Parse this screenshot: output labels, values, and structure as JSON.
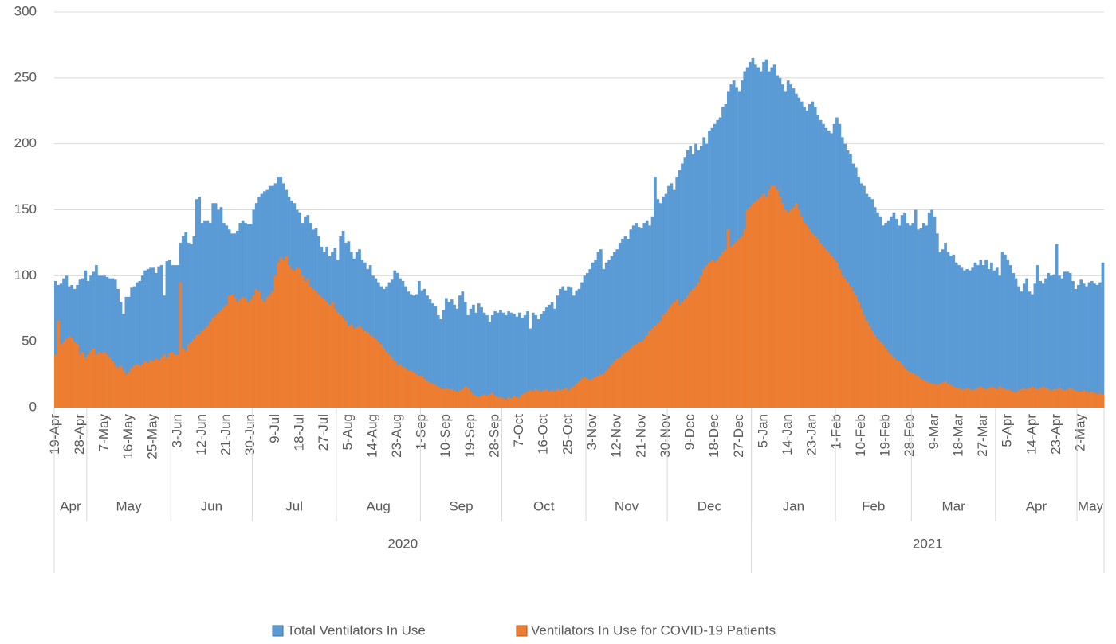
{
  "chart_data": {
    "type": "bar",
    "overlap": true,
    "ylim": [
      0,
      300
    ],
    "yticks": [
      0,
      50,
      100,
      150,
      200,
      250,
      300
    ],
    "grid": true,
    "legend": "bottom",
    "categories": [
      "19-Apr",
      null,
      null,
      null,
      null,
      null,
      null,
      null,
      null,
      "28-Apr",
      null,
      null,
      null,
      null,
      null,
      null,
      null,
      null,
      "7-May",
      null,
      null,
      null,
      null,
      null,
      null,
      null,
      null,
      "16-May",
      null,
      null,
      null,
      null,
      null,
      null,
      null,
      null,
      "25-May",
      null,
      null,
      null,
      null,
      null,
      null,
      null,
      null,
      "3-Jun",
      null,
      null,
      null,
      null,
      null,
      null,
      null,
      null,
      "12-Jun",
      null,
      null,
      null,
      null,
      null,
      null,
      null,
      null,
      "21-Jun",
      null,
      null,
      null,
      null,
      null,
      null,
      null,
      null,
      "30-Jun",
      null,
      null,
      null,
      null,
      null,
      null,
      null,
      null,
      "9-Jul",
      null,
      null,
      null,
      null,
      null,
      null,
      null,
      null,
      "18-Jul",
      null,
      null,
      null,
      null,
      null,
      null,
      null,
      null,
      "27-Jul",
      null,
      null,
      null,
      null,
      null,
      null,
      null,
      null,
      "5-Aug",
      null,
      null,
      null,
      null,
      null,
      null,
      null,
      null,
      "14-Aug",
      null,
      null,
      null,
      null,
      null,
      null,
      null,
      null,
      "23-Aug",
      null,
      null,
      null,
      null,
      null,
      null,
      null,
      null,
      "1-Sep",
      null,
      null,
      null,
      null,
      null,
      null,
      null,
      null,
      "10-Sep",
      null,
      null,
      null,
      null,
      null,
      null,
      null,
      null,
      "19-Sep",
      null,
      null,
      null,
      null,
      null,
      null,
      null,
      null,
      "28-Sep",
      null,
      null,
      null,
      null,
      null,
      null,
      null,
      null,
      "7-Oct",
      null,
      null,
      null,
      null,
      null,
      null,
      null,
      null,
      "16-Oct",
      null,
      null,
      null,
      null,
      null,
      null,
      null,
      null,
      "25-Oct",
      null,
      null,
      null,
      null,
      null,
      null,
      null,
      null,
      "3-Nov",
      null,
      null,
      null,
      null,
      null,
      null,
      null,
      null,
      "12-Nov",
      null,
      null,
      null,
      null,
      null,
      null,
      null,
      null,
      "21-Nov",
      null,
      null,
      null,
      null,
      null,
      null,
      null,
      null,
      "30-Nov",
      null,
      null,
      null,
      null,
      null,
      null,
      null,
      null,
      "9-Dec",
      null,
      null,
      null,
      null,
      null,
      null,
      null,
      null,
      "18-Dec",
      null,
      null,
      null,
      null,
      null,
      null,
      null,
      null,
      "27-Dec",
      null,
      null,
      null,
      null,
      null,
      null,
      null,
      null,
      "5-Jan",
      null,
      null,
      null,
      null,
      null,
      null,
      null,
      null,
      "14-Jan",
      null,
      null,
      null,
      null,
      null,
      null,
      null,
      null,
      "23-Jan",
      null,
      null,
      null,
      null,
      null,
      null,
      null,
      null,
      "1-Feb",
      null,
      null,
      null,
      null,
      null,
      null,
      null,
      null,
      "10-Feb",
      null,
      null,
      null,
      null,
      null,
      null,
      null,
      null,
      "19-Feb",
      null,
      null,
      null,
      null,
      null,
      null,
      null,
      null,
      "28-Feb",
      null,
      null,
      null,
      null,
      null,
      null,
      null,
      null,
      "9-Mar",
      null,
      null,
      null,
      null,
      null,
      null,
      null,
      null,
      "18-Mar",
      null,
      null,
      null,
      null,
      null,
      null,
      null,
      null,
      "27-Mar",
      null,
      null,
      null,
      null,
      null,
      null,
      null,
      null,
      "5-Apr",
      null,
      null,
      null,
      null,
      null,
      null,
      null,
      null,
      "14-Apr",
      null,
      null,
      null,
      null,
      null,
      null,
      null,
      null,
      "23-Apr",
      null,
      null,
      null,
      null,
      null,
      null,
      null,
      null,
      "2-May",
      null,
      null,
      null,
      null,
      null,
      null,
      null,
      null
    ],
    "month_groups": [
      {
        "label": "Apr",
        "days": 12
      },
      {
        "label": "May",
        "days": 31
      },
      {
        "label": "Jun",
        "days": 30
      },
      {
        "label": "Jul",
        "days": 31
      },
      {
        "label": "Aug",
        "days": 31
      },
      {
        "label": "Sep",
        "days": 30
      },
      {
        "label": "Oct",
        "days": 31
      },
      {
        "label": "Nov",
        "days": 30
      },
      {
        "label": "Dec",
        "days": 31
      },
      {
        "label": "Jan",
        "days": 31
      },
      {
        "label": "Feb",
        "days": 28
      },
      {
        "label": "Mar",
        "days": 31
      },
      {
        "label": "Apr",
        "days": 30
      },
      {
        "label": "May",
        "days": 10
      }
    ],
    "year_groups": [
      {
        "label": "2020",
        "months": 9
      },
      {
        "label": "2021",
        "months": 5
      }
    ],
    "series": [
      {
        "name": "Total Ventilators In Use",
        "color": "#5b9bd5",
        "values": [
          96,
          93,
          94,
          98,
          100,
          92,
          93,
          90,
          93,
          97,
          98,
          104,
          96,
          100,
          103,
          108,
          100,
          100,
          100,
          99,
          98,
          98,
          97,
          90,
          80,
          71,
          84,
          84,
          91,
          92,
          95,
          96,
          100,
          104,
          105,
          106,
          106,
          102,
          107,
          108,
          85,
          111,
          112,
          108,
          108,
          108,
          125,
          130,
          133,
          125,
          124,
          130,
          158,
          160,
          140,
          142,
          142,
          140,
          155,
          155,
          150,
          152,
          140,
          138,
          135,
          132,
          132,
          134,
          140,
          142,
          140,
          139,
          139,
          150,
          155,
          160,
          162,
          164,
          165,
          168,
          168,
          170,
          175,
          175,
          170,
          165,
          160,
          157,
          155,
          150,
          148,
          140,
          145,
          146,
          140,
          135,
          136,
          130,
          122,
          118,
          122,
          115,
          118,
          121,
          112,
          130,
          134,
          125,
          126,
          118,
          113,
          118,
          120,
          112,
          110,
          105,
          108,
          100,
          98,
          95,
          92,
          90,
          92,
          95,
          97,
          104,
          102,
          98,
          96,
          92,
          88,
          86,
          85,
          86,
          96,
          89,
          90,
          85,
          82,
          79,
          77,
          70,
          67,
          74,
          83,
          80,
          82,
          78,
          75,
          85,
          88,
          80,
          70,
          75,
          78,
          72,
          79,
          76,
          72,
          70,
          65,
          70,
          73,
          72,
          74,
          72,
          70,
          73,
          72,
          71,
          69,
          72,
          68,
          70,
          73,
          60,
          72,
          70,
          67,
          71,
          73,
          76,
          78,
          80,
          75,
          85,
          90,
          92,
          89,
          92,
          91,
          85,
          89,
          90,
          95,
          100,
          102,
          105,
          110,
          112,
          118,
          120,
          105,
          110,
          112,
          115,
          118,
          120,
          125,
          128,
          130,
          128,
          135,
          138,
          140,
          137,
          136,
          140,
          142,
          138,
          145,
          175,
          158,
          155,
          160,
          162,
          168,
          170,
          165,
          175,
          180,
          185,
          190,
          195,
          198,
          192,
          200,
          195,
          198,
          205,
          200,
          210,
          212,
          215,
          218,
          220,
          228,
          230,
          240,
          245,
          248,
          243,
          240,
          248,
          255,
          258,
          262,
          265,
          260,
          258,
          255,
          262,
          264,
          255,
          258,
          260,
          252,
          250,
          245,
          240,
          248,
          245,
          242,
          238,
          235,
          232,
          228,
          225,
          230,
          232,
          228,
          222,
          218,
          215,
          212,
          210,
          208,
          215,
          220,
          215,
          205,
          200,
          195,
          192,
          185,
          182,
          175,
          170,
          168,
          162,
          160,
          158,
          152,
          148,
          145,
          138,
          140,
          142,
          145,
          148,
          143,
          138,
          146,
          148,
          140,
          138,
          140,
          150,
          135,
          136,
          140,
          138,
          148,
          150,
          145,
          132,
          118,
          120,
          125,
          118,
          115,
          116,
          110,
          108,
          106,
          104,
          105,
          104,
          106,
          110,
          108,
          112,
          108,
          112,
          105,
          110,
          104,
          106,
          100,
          118,
          116,
          112,
          108,
          102,
          98,
          92,
          88,
          94,
          98,
          88,
          86,
          94,
          108,
          96,
          94,
          98,
          102,
          100,
          101,
          124,
          100,
          98,
          103,
          103,
          102,
          96,
          90,
          93,
          97,
          94,
          92,
          95,
          96,
          94,
          93,
          95,
          110
        ]
      },
      {
        "name": "Ventilators In Use for COVID-19 Patients",
        "color": "#ed7d31",
        "values": [
          40,
          66,
          48,
          50,
          52,
          54,
          53,
          50,
          48,
          40,
          42,
          38,
          40,
          43,
          45,
          40,
          42,
          41,
          42,
          40,
          38,
          35,
          32,
          30,
          32,
          28,
          25,
          27,
          30,
          32,
          33,
          32,
          33,
          35,
          34,
          36,
          35,
          37,
          36,
          38,
          40,
          38,
          41,
          42,
          40,
          40,
          95,
          45,
          43,
          48,
          50,
          52,
          55,
          56,
          58,
          60,
          62,
          65,
          68,
          70,
          72,
          74,
          76,
          78,
          85,
          86,
          84,
          80,
          82,
          84,
          83,
          80,
          82,
          85,
          90,
          88,
          82,
          80,
          84,
          86,
          88,
          100,
          110,
          114,
          112,
          115,
          108,
          105,
          104,
          106,
          105,
          100,
          96,
          98,
          92,
          90,
          88,
          86,
          84,
          82,
          80,
          78,
          80,
          75,
          72,
          70,
          68,
          66,
          62,
          63,
          60,
          61,
          62,
          60,
          58,
          57,
          55,
          54,
          52,
          50,
          48,
          45,
          42,
          40,
          38,
          35,
          32,
          33,
          31,
          30,
          28,
          28,
          27,
          25,
          24,
          24,
          22,
          20,
          19,
          18,
          17,
          16,
          15,
          14,
          15,
          14,
          14,
          13,
          12,
          13,
          14,
          16,
          15,
          12,
          10,
          9,
          8,
          9,
          10,
          9,
          10,
          11,
          9,
          8,
          8,
          7,
          6,
          8,
          7,
          9,
          8,
          8,
          10,
          11,
          12,
          13,
          12,
          14,
          13,
          12,
          13,
          14,
          12,
          13,
          12,
          14,
          13,
          14,
          15,
          13,
          15,
          16,
          18,
          20,
          22,
          23,
          22,
          21,
          22,
          23,
          24,
          25,
          26,
          28,
          30,
          33,
          35,
          37,
          38,
          40,
          42,
          43,
          45,
          47,
          48,
          50,
          50,
          52,
          55,
          58,
          60,
          62,
          64,
          66,
          70,
          72,
          75,
          78,
          80,
          82,
          78,
          80,
          82,
          85,
          88,
          90,
          92,
          95,
          100,
          105,
          108,
          110,
          112,
          110,
          112,
          115,
          118,
          120,
          135,
          122,
          124,
          126,
          128,
          130,
          135,
          150,
          152,
          155,
          156,
          158,
          160,
          162,
          160,
          165,
          168,
          168,
          165,
          160,
          155,
          150,
          148,
          150,
          152,
          155,
          150,
          145,
          140,
          138,
          135,
          132,
          130,
          128,
          125,
          122,
          120,
          118,
          115,
          113,
          110,
          105,
          100,
          98,
          95,
          92,
          88,
          85,
          80,
          75,
          70,
          66,
          62,
          58,
          55,
          52,
          50,
          48,
          45,
          42,
          40,
          38,
          36,
          35,
          33,
          30,
          28,
          27,
          26,
          25,
          24,
          22,
          21,
          20,
          19,
          18,
          18,
          17,
          18,
          19,
          20,
          18,
          17,
          16,
          15,
          15,
          14,
          14,
          15,
          14,
          13,
          14,
          15,
          16,
          15,
          14,
          15,
          16,
          15,
          14,
          16,
          15,
          14,
          14,
          13,
          12,
          11,
          13,
          14,
          15,
          14,
          15,
          16,
          15,
          14,
          15,
          16,
          15,
          14,
          13,
          14,
          14,
          15,
          14,
          13,
          14,
          15,
          14,
          13,
          12,
          12,
          13,
          12,
          11,
          12,
          11,
          10,
          11,
          10
        ]
      }
    ]
  }
}
